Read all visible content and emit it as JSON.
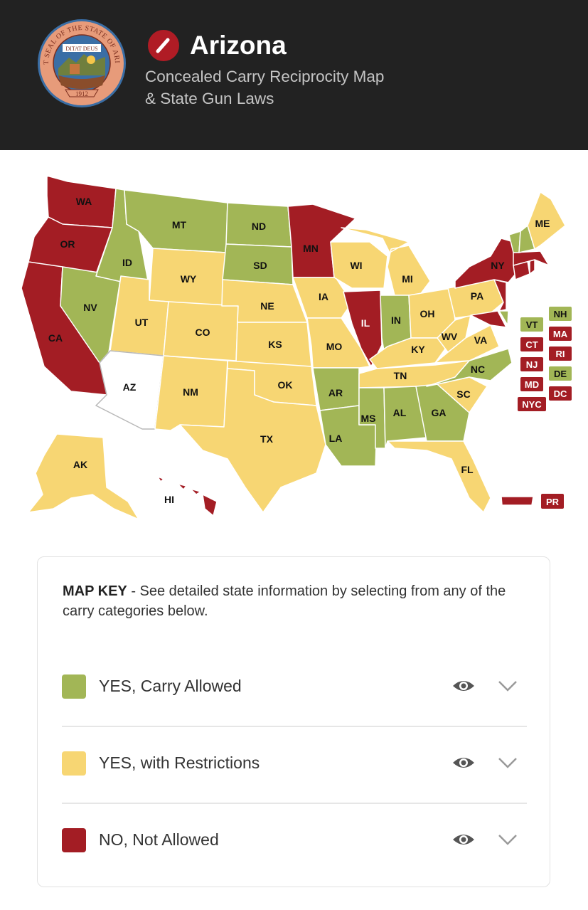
{
  "header": {
    "title": "Arizona",
    "subtitle_line1": "Concealed Carry Reciprocity Map",
    "subtitle_line2": "& State Gun Laws",
    "seal": {
      "ring_text": "GREAT SEAL OF THE STATE OF ARIZONA",
      "motto": "DITAT DEUS",
      "year": "1912"
    }
  },
  "colors": {
    "yes": "#a2b656",
    "restricted": "#f7d673",
    "no": "#a31d24",
    "home": "#ffffff",
    "header_bg": "#222222",
    "accent": "#b01c25"
  },
  "map": {
    "states": {
      "WA": "WA",
      "OR": "OR",
      "CA": "CA",
      "NV": "NV",
      "ID": "ID",
      "MT": "MT",
      "WY": "WY",
      "UT": "UT",
      "AZ": "AZ",
      "CO": "CO",
      "NM": "NM",
      "ND": "ND",
      "SD": "SD",
      "NE": "NE",
      "KS": "KS",
      "OK": "OK",
      "TX": "TX",
      "MN": "MN",
      "IA": "IA",
      "MO": "MO",
      "AR": "AR",
      "LA": "LA",
      "WI": "WI",
      "IL": "IL",
      "MI": "MI",
      "IN": "IN",
      "OH": "OH",
      "KY": "KY",
      "TN": "TN",
      "MS": "MS",
      "AL": "AL",
      "GA": "GA",
      "FL": "FL",
      "SC": "SC",
      "NC": "NC",
      "VA": "VA",
      "WV": "WV",
      "PA": "PA",
      "NY": "NY",
      "ME": "ME",
      "AK": "AK",
      "HI": "HI"
    },
    "small_states": {
      "NH": "NH",
      "VT": "VT",
      "MA": "MA",
      "CT": "CT",
      "RI": "RI",
      "NJ": "NJ",
      "DE": "DE",
      "MD": "MD",
      "DC": "DC",
      "NYC": "NYC",
      "PR": "PR"
    }
  },
  "map_key": {
    "title": "MAP KEY",
    "description": " - See detailed state information by selecting from any of the carry categories below.",
    "items": [
      {
        "label": "YES, Carry Allowed",
        "icon": "eye-icon",
        "expand_icon": "chevron-down-icon"
      },
      {
        "label": "YES, with Restrictions",
        "icon": "eye-icon",
        "expand_icon": "chevron-down-icon"
      },
      {
        "label": "NO, Not Allowed",
        "icon": "eye-icon",
        "expand_icon": "chevron-down-icon"
      }
    ]
  }
}
